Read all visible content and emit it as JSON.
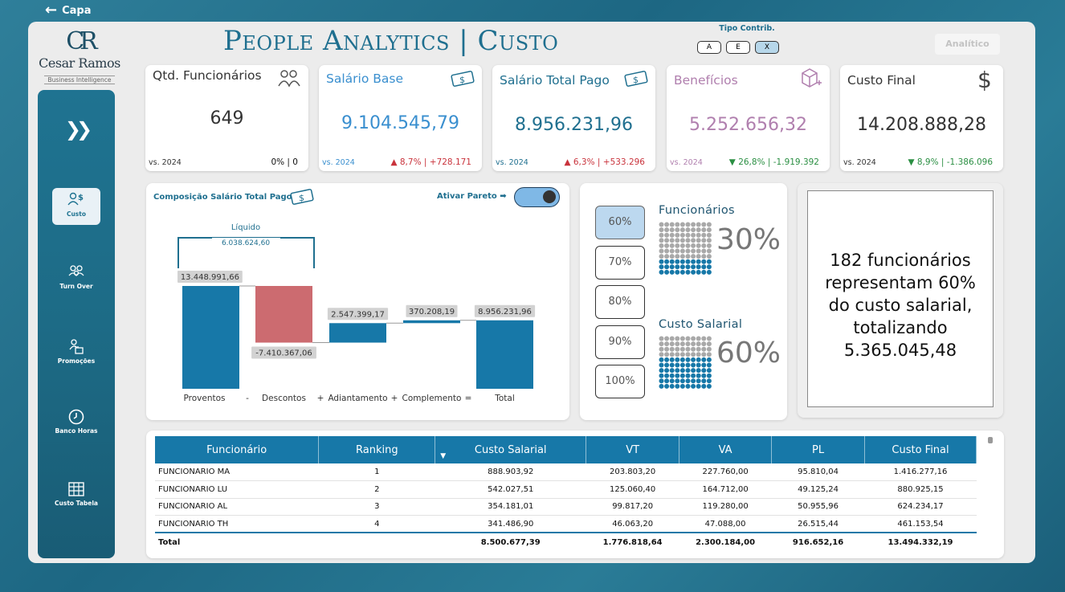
{
  "back": {
    "label": "Capa"
  },
  "logo": {
    "mark": "CR",
    "brand": "Cesar Ramos",
    "sub": "Business Intelligence"
  },
  "nav": [
    {
      "label": "Custo",
      "icon": "people-money-icon",
      "active": true
    },
    {
      "label": "Turn Over",
      "icon": "group-icon"
    },
    {
      "label": "Promoções",
      "icon": "promotion-icon"
    },
    {
      "label": "Banco Horas",
      "icon": "clock-icon"
    },
    {
      "label": "Custo Tabela",
      "icon": "table-icon"
    }
  ],
  "expand_icon": "double-chevron-right-icon",
  "header": {
    "title": "People Analytics | Custo",
    "tipo_label": "Tipo Contrib.",
    "tipo_options": [
      "A",
      "E",
      "X"
    ],
    "tipo_selected": "X",
    "analitico": "Analítico"
  },
  "kpis": [
    {
      "label": "Qtd. Funcionários",
      "value": "649",
      "cmp": "vs. 2024",
      "delta": "0% | 0",
      "dir": "none",
      "color": "#333333",
      "icon": "people-icon"
    },
    {
      "label": "Salário Base",
      "value": "9.104.545,79",
      "cmp": "vs. 2024",
      "delta": "▲ 8,7% | +728.171",
      "dir": "up",
      "color": "#3a8fcf",
      "icon": "money-icon"
    },
    {
      "label": "Salário Total Pago",
      "value": "8.956.231,96",
      "cmp": "vs. 2024",
      "delta": "▲ 6,3% | +533.296",
      "dir": "up",
      "color": "#1f6f8f",
      "icon": "money-icon"
    },
    {
      "label": "Benefícios",
      "value": "5.252.656,32",
      "cmp": "vs. 2024",
      "delta": "▼ 26,8% | -1.919.392",
      "dir": "down",
      "color": "#b07fae",
      "icon": "box-plus-icon"
    },
    {
      "label": "Custo Final",
      "value": "14.208.888,28",
      "cmp": "vs. 2024",
      "delta": "▼ 8,9% | -1.386.096",
      "dir": "down",
      "color": "#333333",
      "icon": "dollar-icon"
    }
  ],
  "waterfall": {
    "title": "Composição Salário Total Pago",
    "pareto_label": "Ativar Pareto ➡",
    "liquido_label": "Líquido",
    "liquido_value": "6.038.624,60"
  },
  "chart_data": {
    "type": "bar",
    "subtype": "waterfall",
    "title": "Composição Salário Total Pago",
    "categories": [
      "Proventos",
      "Descontos",
      "Adiantamento",
      "Complemento",
      "Total"
    ],
    "operators": [
      "-",
      "+",
      "+",
      "="
    ],
    "values": [
      13448991.66,
      -7410367.06,
      2547399.17,
      370208.19,
      8956231.96
    ],
    "labels": [
      "13.448.991,66",
      "-7.410.367,06",
      "2.547.399,17",
      "370.208,19",
      "8.956.231,96"
    ],
    "colors": {
      "positive": "#1778a8",
      "negative": "#cc6b70"
    }
  },
  "pareto": {
    "options": [
      "60%",
      "70%",
      "80%",
      "90%",
      "100%"
    ],
    "selected": "60%",
    "funcionarios_label": "Funcionários",
    "funcionarios_pct": "30%",
    "funcionarios_fraction": 0.3,
    "custo_label": "Custo Salarial",
    "custo_pct": "60%",
    "custo_fraction": 0.6
  },
  "summary": {
    "line1": "182 funcionários",
    "line2": "representam 60%",
    "line3": "do custo salarial,",
    "line4": "totalizando",
    "line5": "5.365.045,48"
  },
  "table": {
    "headers": [
      "Funcionário",
      "Ranking",
      "Custo Salarial",
      "VT",
      "VA",
      "PL",
      "Custo Final"
    ],
    "rows": [
      [
        "FUNCIONARIO MA",
        "1",
        "888.903,92",
        "203.803,20",
        "227.760,00",
        "95.810,04",
        "1.416.277,16"
      ],
      [
        "FUNCIONARIO LU",
        "2",
        "542.027,51",
        "125.060,40",
        "164.712,00",
        "49.125,24",
        "880.925,15"
      ],
      [
        "FUNCIONARIO AL",
        "3",
        "354.181,01",
        "99.817,20",
        "119.280,00",
        "50.955,96",
        "624.234,17"
      ],
      [
        "FUNCIONARIO TH",
        "4",
        "341.486,90",
        "46.063,20",
        "47.088,00",
        "26.515,44",
        "461.153,54"
      ]
    ],
    "total": [
      "Total",
      "",
      "8.500.677,39",
      "1.776.818,64",
      "2.300.184,00",
      "916.652,16",
      "13.494.332,19"
    ]
  }
}
